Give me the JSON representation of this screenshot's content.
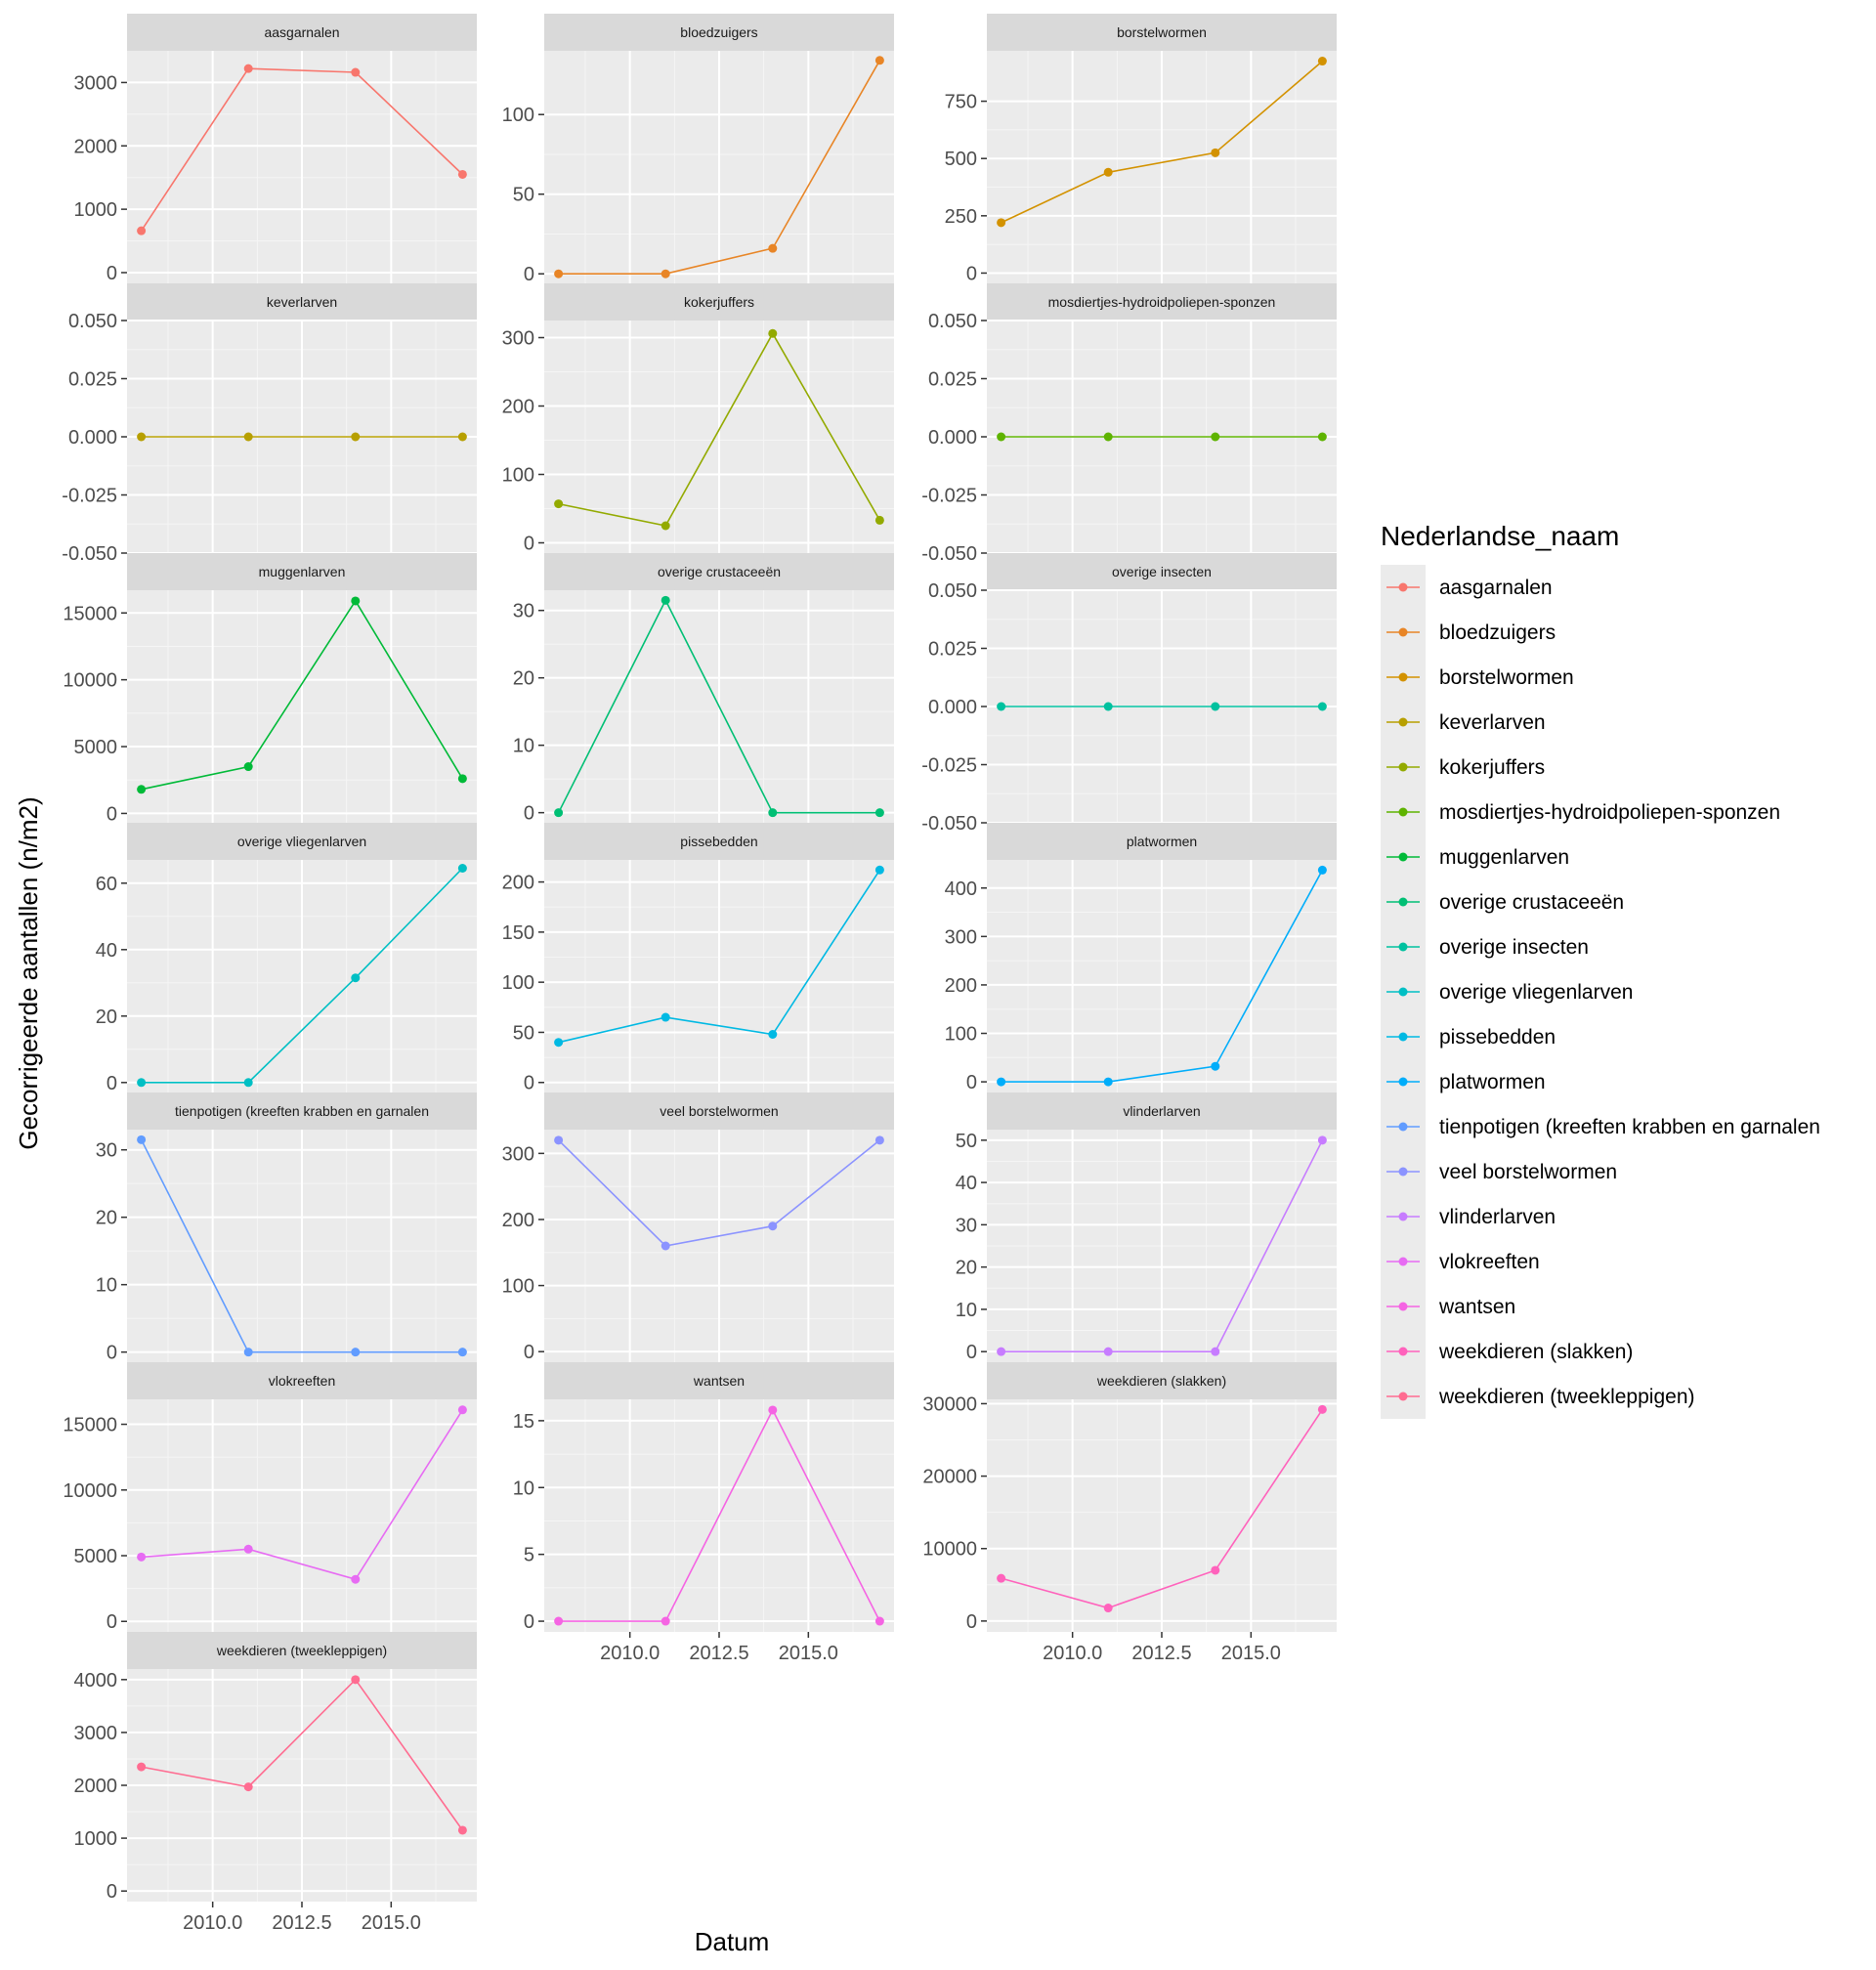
{
  "chart_data": {
    "type": "line",
    "x_label": "Datum",
    "y_label": "Gecorrigeerde aantallen (n/m2)",
    "x_tick_labels": [
      "2010.0",
      "2012.5",
      "2015.0"
    ],
    "x_ticks": [
      2010,
      2012.5,
      2015
    ],
    "xlim": [
      2007.6,
      2017.4
    ],
    "x": [
      2008,
      2011,
      2014,
      2017
    ],
    "grid": true,
    "legend": {
      "title": "Nederlandse_naam",
      "placement": "right",
      "entries": [
        "aasgarnalen",
        "bloedzuigers",
        "borstelwormen",
        "keverlarven",
        "kokerjuffers",
        "mosdiertjes-hydroidpoliepen-sponzen",
        "muggenlarven",
        "overige crustaceeën",
        "overige insecten",
        "overige vliegenlarven",
        "pissebedden",
        "platwormen",
        "tienpotigen (kreeften krabben en garnalen",
        "veel borstelwormen",
        "vlinderlarven",
        "vlokreeften",
        "wantsen",
        "weekdieren (slakken)",
        "weekdieren (tweekleppigen)"
      ]
    },
    "series": [
      {
        "name": "aasgarnalen",
        "color": "#F8766D",
        "values": [
          660,
          3220,
          3160,
          1550
        ],
        "ylim": [
          -170,
          3500
        ],
        "yticks": [
          0,
          1000,
          2000,
          3000
        ],
        "ytick_labels": [
          "0",
          "1000",
          "2000",
          "3000"
        ]
      },
      {
        "name": "bloedzuigers",
        "color": "#E88526",
        "values": [
          0,
          0,
          16,
          134
        ],
        "ylim": [
          -6,
          140
        ],
        "yticks": [
          0,
          50,
          100
        ],
        "ytick_labels": [
          "0",
          "50",
          "100"
        ]
      },
      {
        "name": "borstelwormen",
        "color": "#D39200",
        "values": [
          220,
          440,
          525,
          925
        ],
        "ylim": [
          -45,
          970
        ],
        "yticks": [
          0,
          250,
          500,
          750
        ],
        "ytick_labels": [
          "0",
          "250",
          "500",
          "750"
        ]
      },
      {
        "name": "keverlarven",
        "color": "#B79F00",
        "values": [
          0,
          0,
          0,
          0
        ],
        "ylim": [
          -0.05,
          0.05
        ],
        "yticks": [
          -0.05,
          -0.025,
          0,
          0.025,
          0.05
        ],
        "ytick_labels": [
          "-0.050",
          "-0.025",
          "0.000",
          "0.025",
          "0.050"
        ]
      },
      {
        "name": "kokerjuffers",
        "color": "#93AA00",
        "values": [
          57,
          25,
          306,
          33
        ],
        "ylim": [
          -15,
          325
        ],
        "yticks": [
          0,
          100,
          200,
          300
        ],
        "ytick_labels": [
          "0",
          "100",
          "200",
          "300"
        ]
      },
      {
        "name": "mosdiertjes-hydroidpoliepen-sponzen",
        "color": "#5EB300",
        "values": [
          0,
          0,
          0,
          0
        ],
        "ylim": [
          -0.05,
          0.05
        ],
        "yticks": [
          -0.05,
          -0.025,
          0,
          0.025,
          0.05
        ],
        "ytick_labels": [
          "-0.050",
          "-0.025",
          "0.000",
          "0.025",
          "0.050"
        ]
      },
      {
        "name": "muggenlarven",
        "color": "#00BA38",
        "values": [
          1800,
          3500,
          15900,
          2600
        ],
        "ylim": [
          -700,
          16700
        ],
        "yticks": [
          0,
          5000,
          10000,
          15000
        ],
        "ytick_labels": [
          "0",
          "5000",
          "10000",
          "15000"
        ]
      },
      {
        "name": "overige crustaceeën",
        "color": "#00BF74",
        "values": [
          0,
          31.5,
          0,
          0
        ],
        "ylim": [
          -1.5,
          33
        ],
        "yticks": [
          0,
          10,
          20,
          30
        ],
        "ytick_labels": [
          "0",
          "10",
          "20",
          "30"
        ]
      },
      {
        "name": "overige insecten",
        "color": "#00C19F",
        "values": [
          0,
          0,
          0,
          0
        ],
        "ylim": [
          -0.05,
          0.05
        ],
        "yticks": [
          -0.05,
          -0.025,
          0,
          0.025,
          0.05
        ],
        "ytick_labels": [
          "-0.050",
          "-0.025",
          "0.000",
          "0.025",
          "0.050"
        ]
      },
      {
        "name": "overige vliegenlarven",
        "color": "#00BFC4",
        "values": [
          0,
          0,
          31.5,
          64.5
        ],
        "ylim": [
          -3,
          67
        ],
        "yticks": [
          0,
          20,
          40,
          60
        ],
        "ytick_labels": [
          "0",
          "20",
          "40",
          "60"
        ]
      },
      {
        "name": "pissebedden",
        "color": "#00B9E3",
        "values": [
          40,
          65,
          48,
          212
        ],
        "ylim": [
          -10,
          222
        ],
        "yticks": [
          0,
          50,
          100,
          150,
          200
        ],
        "ytick_labels": [
          "0",
          "50",
          "100",
          "150",
          "200"
        ]
      },
      {
        "name": "platwormen",
        "color": "#00ADFA",
        "values": [
          0,
          0,
          32,
          437
        ],
        "ylim": [
          -22,
          458
        ],
        "yticks": [
          0,
          100,
          200,
          300,
          400
        ],
        "ytick_labels": [
          "0",
          "100",
          "200",
          "300",
          "400"
        ]
      },
      {
        "name": "tienpotigen (kreeften krabben en garnalen",
        "color": "#619CFF",
        "values": [
          31.5,
          0,
          0,
          0
        ],
        "ylim": [
          -1.5,
          33
        ],
        "yticks": [
          0,
          10,
          20,
          30
        ],
        "ytick_labels": [
          "0",
          "10",
          "20",
          "30"
        ]
      },
      {
        "name": "veel borstelwormen",
        "color": "#8B93FF",
        "values": [
          320,
          160,
          190,
          320
        ],
        "ylim": [
          -16,
          336
        ],
        "yticks": [
          0,
          100,
          200,
          300
        ],
        "ytick_labels": [
          "0",
          "100",
          "200",
          "300"
        ]
      },
      {
        "name": "vlinderlarven",
        "color": "#C77CFF",
        "values": [
          0,
          0,
          0,
          50
        ],
        "ylim": [
          -2.5,
          52.5
        ],
        "yticks": [
          0,
          10,
          20,
          30,
          40,
          50
        ],
        "ytick_labels": [
          "0",
          "10",
          "20",
          "30",
          "40",
          "50"
        ]
      },
      {
        "name": "vlokreeften",
        "color": "#E76BF3",
        "values": [
          4900,
          5500,
          3200,
          16100
        ],
        "ylim": [
          -800,
          16900
        ],
        "yticks": [
          0,
          5000,
          10000,
          15000
        ],
        "ytick_labels": [
          "0",
          "5000",
          "10000",
          "15000"
        ]
      },
      {
        "name": "wantsen",
        "color": "#F564E3",
        "values": [
          0,
          0,
          15.8,
          0
        ],
        "ylim": [
          -0.8,
          16.6
        ],
        "yticks": [
          0,
          5,
          10,
          15
        ],
        "ytick_labels": [
          "0",
          "5",
          "10",
          "15"
        ]
      },
      {
        "name": "weekdieren (slakken)",
        "color": "#FF62BC",
        "values": [
          5900,
          1800,
          7000,
          29200
        ],
        "ylim": [
          -1500,
          30600
        ],
        "yticks": [
          0,
          10000,
          20000,
          30000
        ],
        "ytick_labels": [
          "0",
          "10000",
          "20000",
          "30000"
        ]
      },
      {
        "name": "weekdieren (tweekleppigen)",
        "color": "#FF6C91",
        "values": [
          2350,
          1970,
          4000,
          1150
        ],
        "ylim": [
          -200,
          4200
        ],
        "yticks": [
          0,
          1000,
          2000,
          3000,
          4000
        ],
        "ytick_labels": [
          "0",
          "1000",
          "2000",
          "3000",
          "4000"
        ]
      }
    ]
  }
}
